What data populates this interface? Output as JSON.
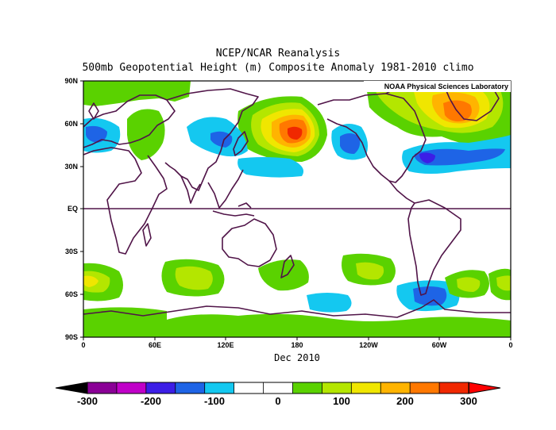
{
  "title_line1": "NCEP/NCAR Reanalysis",
  "title_line2": "500mb Geopotential Height (m) Composite Anomaly 1981-2010 climo",
  "credit": "NOAA Physical Sciences Laboratory",
  "xlabel": "Dec 2010",
  "lat_ticks": [
    "90N",
    "60N",
    "30N",
    "EQ",
    "30S",
    "60S",
    "90S"
  ],
  "lon_ticks": [
    "0",
    "60E",
    "120E",
    "180",
    "120W",
    "60W",
    "0"
  ],
  "colorbar": {
    "labels": [
      "-300",
      "-200",
      "-100",
      "0",
      "100",
      "200",
      "300"
    ],
    "colors": [
      "#8a0096",
      "#c000c8",
      "#3c1ee6",
      "#1e64e6",
      "#14c8f0",
      "#ffffff",
      "#ffffff",
      "#5ad200",
      "#b4e600",
      "#f0e600",
      "#ffb400",
      "#ff7800",
      "#f02800"
    ],
    "min_color": "#000000",
    "max_color": "#ff0000"
  },
  "map_colors": {
    "coast": "#501448",
    "green": "#5ad200",
    "lime": "#b4e600",
    "yellow": "#f0e600",
    "amber": "#ffb400",
    "orange": "#ff7800",
    "red": "#f02800",
    "cyan": "#14c8f0",
    "blue": "#1e64e6",
    "deep_blue": "#3c1ee6"
  }
}
